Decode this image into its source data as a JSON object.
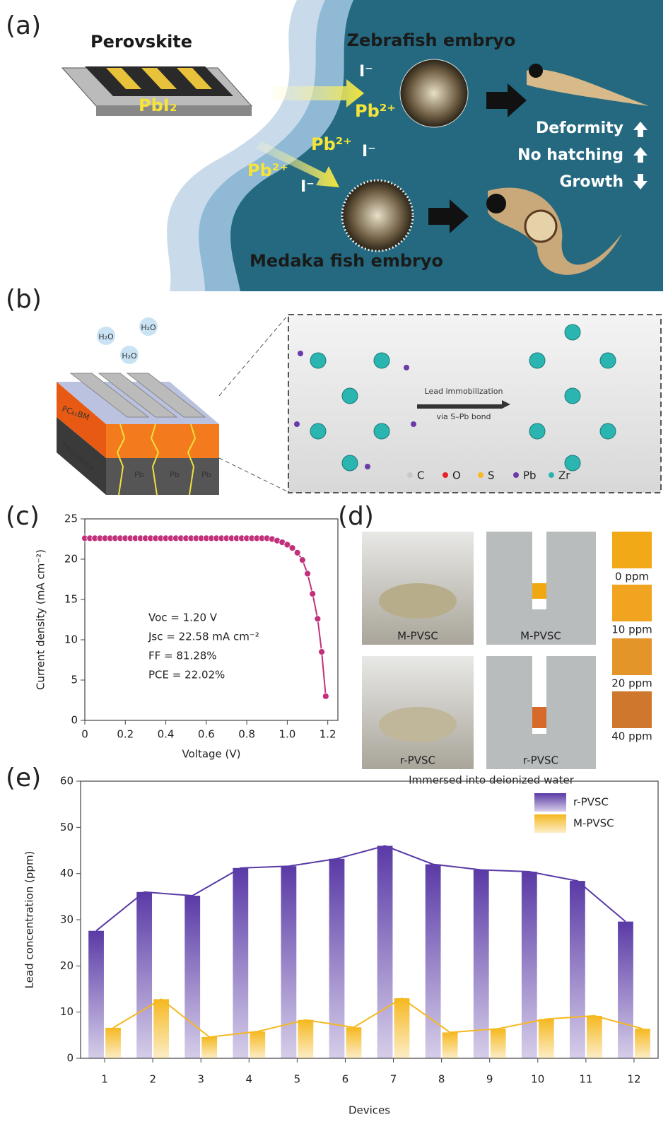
{
  "panels": {
    "a": {
      "label": "(a)",
      "device": "Perovskite",
      "source": "PbI₂",
      "ions": [
        "I⁻",
        "Pb²⁺",
        "Pb²⁺",
        "I⁻",
        "Pb²⁺",
        "I⁻"
      ],
      "zebrafish": "Zebrafish embryo",
      "medaka": "Medaka fish embryo",
      "effects": [
        "Deformity",
        "No hatching",
        "Growth"
      ]
    },
    "b": {
      "label": "(b)",
      "water": [
        "H₂O",
        "H₂O",
        "H₂O"
      ],
      "layers": [
        "PC₆₁BM",
        "Perovskite"
      ],
      "lead": [
        "Pb",
        "Pb",
        "Pb"
      ],
      "process": [
        "Lead immobilization",
        "via S–Pb bond"
      ],
      "legend": [
        {
          "name": "C",
          "color": "#c8c8c8"
        },
        {
          "name": "O",
          "color": "#e8202a"
        },
        {
          "name": "S",
          "color": "#f7b91e"
        },
        {
          "name": "Pb",
          "color": "#6a3aa8"
        },
        {
          "name": "Zr",
          "color": "#2bb5b0"
        }
      ]
    },
    "c": {
      "label": "(c)"
    },
    "d": {
      "label": "(d)",
      "captions": [
        "M-PVSC",
        "M-PVSC",
        "r-PVSC",
        "r-PVSC"
      ],
      "scale": [
        "0 ppm",
        "10 ppm",
        "20 ppm",
        "40 ppm"
      ],
      "note": "Immersed into deionized water"
    },
    "e": {
      "label": "(e)"
    }
  },
  "chart_data": [
    {
      "type": "line",
      "x_label": "Voltage (V)",
      "y_label": "Current density (mA cm⁻²)",
      "annotations": [
        "Voc = 1.20 V",
        "Jsc = 22.58 mA cm⁻²",
        "FF = 81.28%",
        "PCE = 22.02%"
      ],
      "xlim": [
        0,
        1.25
      ],
      "ylim": [
        0,
        25
      ],
      "xticks": [
        0,
        0.2,
        0.4,
        0.6,
        0.8,
        {
          "value": 1,
          "label": "1.0"
        },
        1.2
      ],
      "yticks": [
        0,
        5,
        10,
        15,
        20,
        25
      ],
      "x": [
        0,
        0.025,
        0.05,
        0.075,
        0.1,
        0.125,
        0.15,
        0.175,
        0.2,
        0.225,
        0.25,
        0.275,
        0.3,
        0.325,
        0.35,
        0.375,
        0.4,
        0.425,
        0.45,
        0.475,
        0.5,
        0.525,
        0.55,
        0.575,
        0.6,
        0.625,
        0.65,
        0.675,
        0.7,
        0.725,
        0.75,
        0.775,
        0.8,
        0.825,
        0.85,
        0.875,
        0.9,
        0.925,
        0.95,
        0.975,
        1.0,
        1.025,
        1.05,
        1.075,
        1.1,
        1.125,
        1.15,
        1.17,
        1.19
      ],
      "series": [
        {
          "color": "#c2307c",
          "values": [
            22.6,
            22.6,
            22.6,
            22.6,
            22.6,
            22.6,
            22.6,
            22.6,
            22.6,
            22.6,
            22.6,
            22.6,
            22.6,
            22.6,
            22.6,
            22.6,
            22.6,
            22.6,
            22.6,
            22.6,
            22.6,
            22.6,
            22.6,
            22.6,
            22.6,
            22.6,
            22.6,
            22.6,
            22.6,
            22.6,
            22.6,
            22.6,
            22.6,
            22.6,
            22.6,
            22.6,
            22.6,
            22.5,
            22.3,
            22.1,
            21.8,
            21.4,
            20.8,
            19.9,
            18.2,
            15.7,
            12.6,
            8.5,
            3.0
          ]
        }
      ]
    },
    {
      "type": "bar",
      "x_label": "Devices",
      "y_label": "Lead concentration (ppm)",
      "legend": "upper right",
      "categories": [
        "1",
        "2",
        "3",
        "4",
        "5",
        "6",
        "7",
        "8",
        "9",
        "10",
        "11",
        "12"
      ],
      "ylim": [
        0,
        60
      ],
      "yticks": [
        0,
        10,
        20,
        30,
        40,
        50,
        60
      ],
      "series": [
        {
          "name": "r-PVSC",
          "color": "#5a3aa6",
          "values": [
            27.6,
            36,
            35.2,
            41.2,
            41.6,
            43.2,
            46,
            42,
            40.8,
            40.4,
            38.4,
            29.6
          ]
        },
        {
          "name": "M-PVSC",
          "color": "#f5b820",
          "values": [
            6.6,
            12.8,
            4.6,
            5.8,
            8.3,
            6.7,
            13,
            5.6,
            6.4,
            8.5,
            9.2,
            6.4
          ]
        }
      ]
    }
  ]
}
